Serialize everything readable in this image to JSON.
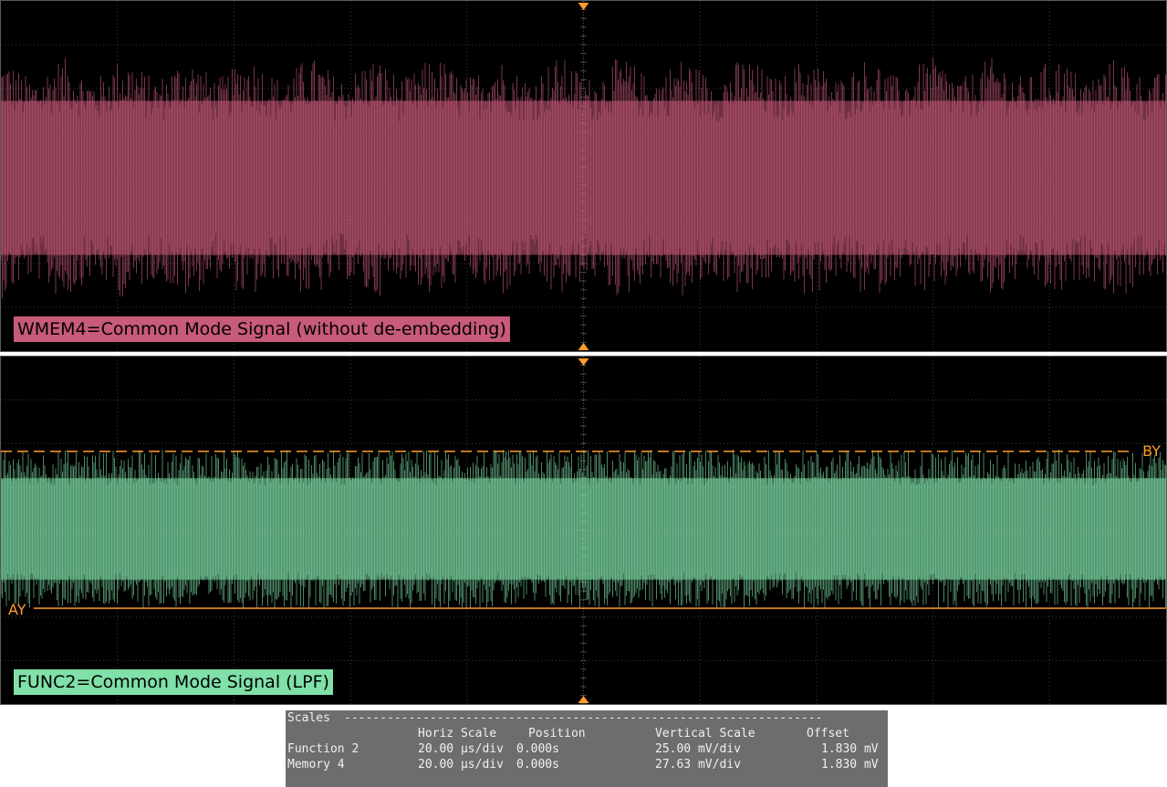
{
  "colors": {
    "trace1": "#c85a7a",
    "trace2": "#7fe0a8",
    "cursor": "#ff9d2a",
    "grid": "#3c3c3c",
    "background": "#000000"
  },
  "panels": [
    {
      "label": "WMEM4=Common Mode Signal (without de-embedding)"
    },
    {
      "label": "FUNC2=Common Mode Signal (LPF)"
    }
  ],
  "cursors": {
    "b_label": "BY",
    "a_label": "AY"
  },
  "scales": {
    "title": "Scales",
    "headers": {
      "horiz": "Horiz Scale",
      "position": "Position",
      "vertical": "Vertical Scale",
      "offset": "Offset"
    },
    "rows": [
      {
        "name": "Function 2",
        "horiz": "20.00 µs/div",
        "position": "0.000s",
        "vertical": "25.00 mV/div",
        "offset": "1.830 mV"
      },
      {
        "name": "Memory 4",
        "horiz": "20.00 µs/div",
        "position": "0.000s",
        "vertical": "27.63 mV/div",
        "offset": "1.830 mV"
      }
    ]
  }
}
